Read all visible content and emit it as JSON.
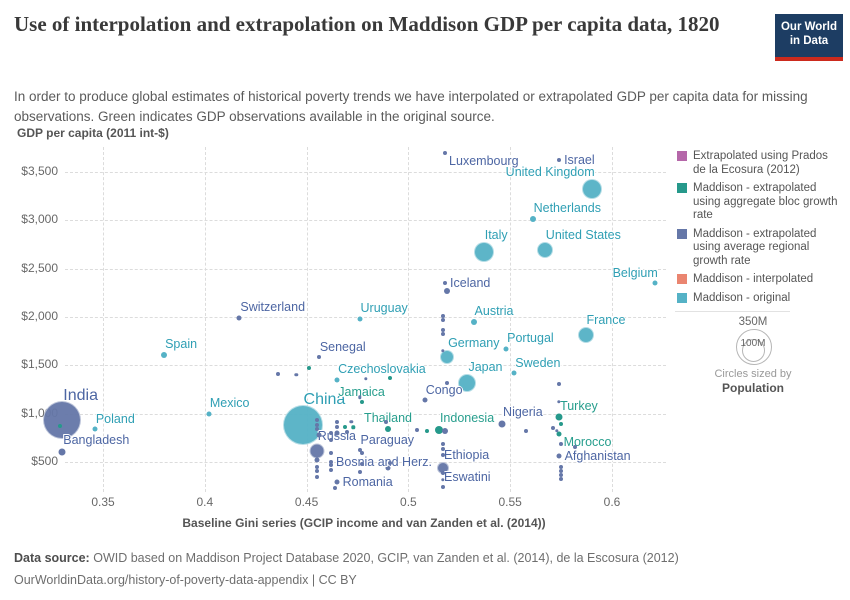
{
  "header": {
    "title": "Use of interpolation and extrapolation on Maddison GDP per capita data, 1820",
    "subtitle": "In order to produce global estimates of historical poverty trends we have interpolated or extrapolated GDP per capita data for missing observations. Green indicates GDP observations available in the original source.",
    "logo_line1": "Our World",
    "logo_line2": "in Data"
  },
  "colors": {
    "series": {
      "prados": "#b567a9",
      "bloc": "#26998b",
      "regional": "#6577a8",
      "interpolated": "#ea8570",
      "original": "#55b2c6"
    },
    "labels": {
      "original": "#2f9fb4",
      "bloc": "#279e8d",
      "regional": "#4d66a3"
    }
  },
  "legend": {
    "items": [
      {
        "label": "Extrapolated using Prados de la Ecosura (2012)",
        "series": "prados"
      },
      {
        "label": "Maddison - extrapolated using aggregate bloc growth rate",
        "series": "bloc"
      },
      {
        "label": "Maddison - extrapolated using average regional growth rate",
        "series": "regional"
      },
      {
        "label": "Maddison - interpolated",
        "series": "interpolated"
      },
      {
        "label": "Maddison - original",
        "series": "original"
      }
    ],
    "size_legend": {
      "big_label": "350M",
      "small_label": "100M",
      "caption1": "Circles sized by",
      "caption2": "Population"
    }
  },
  "chart_data": {
    "type": "scatter",
    "xlabel": "Baseline Gini series (GCIP income and van Zanden et al. (2014))",
    "ylabel": "GDP per capita (2011 int-$)",
    "x_ticks": [
      {
        "v": 0.35,
        "label": "0.35"
      },
      {
        "v": 0.4,
        "label": "0.4"
      },
      {
        "v": 0.45,
        "label": "0.45"
      },
      {
        "v": 0.5,
        "label": "0.5"
      },
      {
        "v": 0.55,
        "label": "0.55"
      },
      {
        "v": 0.6,
        "label": "0.6"
      }
    ],
    "y_ticks": [
      {
        "v": 500,
        "label": "$500"
      },
      {
        "v": 1000,
        "label": "$1,000"
      },
      {
        "v": 1500,
        "label": "$1,500"
      },
      {
        "v": 2000,
        "label": "$2,000"
      },
      {
        "v": 2500,
        "label": "$2,500"
      },
      {
        "v": 3000,
        "label": "$3,000"
      },
      {
        "v": 3500,
        "label": "$3,500"
      }
    ],
    "xlim": [
      0.331,
      0.625
    ],
    "ylim": [
      200,
      3750
    ],
    "grid": true,
    "circles_sized_by": "Population",
    "points": [
      {
        "label": "Luxembourg",
        "gini": 0.518,
        "gdp": 3700,
        "series": "regional",
        "r": 2,
        "pos": "below-right"
      },
      {
        "label": "Israel",
        "gini": 0.574,
        "gdp": 3620,
        "series": "regional",
        "r": 2,
        "pos": "right"
      },
      {
        "label": "United Kingdom",
        "gini": 0.59,
        "gdp": 3320,
        "series": "original",
        "r": 9,
        "pos": "above-left"
      },
      {
        "label": "Netherlands",
        "gini": 0.561,
        "gdp": 3010,
        "series": "original",
        "r": 3,
        "pos": "above-right"
      },
      {
        "label": "Italy",
        "gini": 0.537,
        "gdp": 2670,
        "series": "original",
        "r": 9,
        "pos": "above-right"
      },
      {
        "label": "United States",
        "gini": 0.567,
        "gdp": 2690,
        "series": "original",
        "r": 7,
        "pos": "above-right"
      },
      {
        "label": "Belgium",
        "gini": 0.621,
        "gdp": 2350,
        "series": "original",
        "r": 2.5,
        "pos": "above-left"
      },
      {
        "label": "Iceland",
        "gini": 0.518,
        "gdp": 2350,
        "series": "regional",
        "r": 2,
        "pos": "right"
      },
      {
        "label": "Switzerland",
        "gini": 0.417,
        "gdp": 1990,
        "series": "regional",
        "r": 2.5,
        "pos": "above-right"
      },
      {
        "label": "Uruguay",
        "gini": 0.476,
        "gdp": 1980,
        "series": "original",
        "r": 2.5,
        "pos": "above-right"
      },
      {
        "label": "Austria",
        "gini": 0.532,
        "gdp": 1950,
        "series": "original",
        "r": 3,
        "pos": "above-right"
      },
      {
        "label": "France",
        "gini": 0.587,
        "gdp": 1815,
        "series": "original",
        "r": 7,
        "pos": "above-right"
      },
      {
        "label": "Spain",
        "gini": 0.38,
        "gdp": 1610,
        "series": "original",
        "r": 3,
        "pos": "above-right"
      },
      {
        "label": "Senegal",
        "gini": 0.456,
        "gdp": 1590,
        "series": "regional",
        "r": 2,
        "pos": "above-right"
      },
      {
        "label": "Germany",
        "gini": 0.519,
        "gdp": 1590,
        "series": "original",
        "r": 6,
        "pos": "above-right"
      },
      {
        "label": "Portugal",
        "gini": 0.548,
        "gdp": 1670,
        "series": "original",
        "r": 2.5,
        "pos": "above-right"
      },
      {
        "label": "Sweden",
        "gini": 0.552,
        "gdp": 1420,
        "series": "original",
        "r": 2.5,
        "pos": "above-right"
      },
      {
        "label": "Czechoslovakia",
        "gini": 0.465,
        "gdp": 1350,
        "series": "original",
        "r": 2.5,
        "pos": "above-right"
      },
      {
        "label": "Japan",
        "gini": 0.529,
        "gdp": 1320,
        "series": "original",
        "r": 8,
        "pos": "above-right"
      },
      {
        "label": "Congo",
        "gini": 0.508,
        "gdp": 1140,
        "series": "regional",
        "r": 2.5,
        "pos": "above-right"
      },
      {
        "label": "Jamaica",
        "gini": 0.477,
        "gdp": 1120,
        "series": "bloc",
        "r": 2,
        "pos": "above"
      },
      {
        "label": "Mexico",
        "gini": 0.402,
        "gdp": 1000,
        "series": "original",
        "r": 2.5,
        "pos": "above-right"
      },
      {
        "label": "India",
        "gini": 0.33,
        "gdp": 935,
        "series": "regional",
        "r": 18,
        "pos": "above-right",
        "big": true
      },
      {
        "label": "China",
        "gini": 0.448,
        "gdp": 885,
        "series": "original",
        "r": 19,
        "pos": "above-right",
        "big": true
      },
      {
        "label": "Poland",
        "gini": 0.346,
        "gdp": 840,
        "series": "original",
        "r": 2.5,
        "pos": "above-right"
      },
      {
        "label": "Thailand",
        "gini": 0.49,
        "gdp": 840,
        "series": "bloc",
        "r": 3,
        "pos": "above"
      },
      {
        "label": "Indonesia",
        "gini": 0.515,
        "gdp": 830,
        "series": "bloc",
        "r": 4,
        "pos": "above-right"
      },
      {
        "label": "Nigeria",
        "gini": 0.546,
        "gdp": 895,
        "series": "regional",
        "r": 3.5,
        "pos": "above-right"
      },
      {
        "label": "Turkey",
        "gini": 0.574,
        "gdp": 965,
        "series": "bloc",
        "r": 3.5,
        "pos": "above-right"
      },
      {
        "label": "Russia",
        "gini": 0.455,
        "gdp": 615,
        "series": "regional",
        "r": 6.5,
        "pos": "above-right"
      },
      {
        "label": "Paraguay",
        "gini": 0.476,
        "gdp": 625,
        "series": "regional",
        "r": 2,
        "pos": "above-right"
      },
      {
        "label": "Morocco",
        "gini": 0.574,
        "gdp": 790,
        "series": "bloc",
        "r": 2.5,
        "pos": "below-right"
      },
      {
        "label": "Bosnia and Herz.",
        "gini": 0.462,
        "gdp": 500,
        "series": "regional",
        "r": 2,
        "pos": "right"
      },
      {
        "label": "Ethiopia",
        "gini": 0.517,
        "gdp": 440,
        "series": "regional",
        "r": 5,
        "pos": "above-right"
      },
      {
        "label": "Afghanistan",
        "gini": 0.574,
        "gdp": 560,
        "series": "regional",
        "r": 2.5,
        "pos": "right"
      },
      {
        "label": "Romania",
        "gini": 0.465,
        "gdp": 295,
        "series": "regional",
        "r": 2.5,
        "pos": "right"
      },
      {
        "label": "Eswatini",
        "gini": 0.517,
        "gdp": 240,
        "series": "regional",
        "r": 2,
        "pos": "above-right"
      },
      {
        "label": "Bangladesh",
        "gini": 0.33,
        "gdp": 605,
        "series": "regional",
        "r": 3.5,
        "pos": "above-right"
      },
      {
        "gini": 0.519,
        "gdp": 2270,
        "series": "regional",
        "r": 3
      },
      {
        "gini": 0.436,
        "gdp": 1410,
        "series": "regional",
        "r": 2
      },
      {
        "gini": 0.445,
        "gdp": 1400,
        "series": "regional",
        "r": 1.7
      },
      {
        "gini": 0.451,
        "gdp": 1470,
        "series": "bloc",
        "r": 2
      },
      {
        "gini": 0.517,
        "gdp": 2010,
        "series": "regional",
        "r": 2
      },
      {
        "gini": 0.517,
        "gdp": 1970,
        "series": "regional",
        "r": 2
      },
      {
        "gini": 0.517,
        "gdp": 1865,
        "series": "regional",
        "r": 2
      },
      {
        "gini": 0.517,
        "gdp": 1825,
        "series": "regional",
        "r": 2
      },
      {
        "gini": 0.517,
        "gdp": 1650,
        "series": "regional",
        "r": 1.7
      },
      {
        "gini": 0.519,
        "gdp": 1320,
        "series": "regional",
        "r": 2
      },
      {
        "gini": 0.574,
        "gdp": 1305,
        "series": "regional",
        "r": 2
      },
      {
        "gini": 0.574,
        "gdp": 1120,
        "series": "regional",
        "r": 1.7
      },
      {
        "gini": 0.575,
        "gdp": 895,
        "series": "bloc",
        "r": 2
      },
      {
        "gini": 0.571,
        "gdp": 850,
        "series": "regional",
        "r": 2
      },
      {
        "gini": 0.573,
        "gdp": 820,
        "series": "regional",
        "r": 1.7
      },
      {
        "gini": 0.575,
        "gdp": 685,
        "series": "regional",
        "r": 2
      },
      {
        "gini": 0.582,
        "gdp": 655,
        "series": "regional",
        "r": 2
      },
      {
        "gini": 0.575,
        "gdp": 450,
        "series": "regional",
        "r": 2
      },
      {
        "gini": 0.575,
        "gdp": 405,
        "series": "regional",
        "r": 2
      },
      {
        "gini": 0.575,
        "gdp": 365,
        "series": "regional",
        "r": 2
      },
      {
        "gini": 0.575,
        "gdp": 325,
        "series": "regional",
        "r": 2
      },
      {
        "gini": 0.558,
        "gdp": 820,
        "series": "regional",
        "r": 2
      },
      {
        "gini": 0.518,
        "gdp": 820,
        "series": "regional",
        "r": 3
      },
      {
        "gini": 0.509,
        "gdp": 820,
        "series": "bloc",
        "r": 2
      },
      {
        "gini": 0.517,
        "gdp": 685,
        "series": "regional",
        "r": 2
      },
      {
        "gini": 0.517,
        "gdp": 635,
        "series": "regional",
        "r": 2
      },
      {
        "gini": 0.517,
        "gdp": 570,
        "series": "regional",
        "r": 2
      },
      {
        "gini": 0.517,
        "gdp": 385,
        "series": "regional",
        "r": 2
      },
      {
        "gini": 0.517,
        "gdp": 315,
        "series": "regional",
        "r": 1.7
      },
      {
        "gini": 0.455,
        "gdp": 935,
        "series": "regional",
        "r": 2
      },
      {
        "gini": 0.455,
        "gdp": 885,
        "series": "regional",
        "r": 2
      },
      {
        "gini": 0.455,
        "gdp": 840,
        "series": "regional",
        "r": 2
      },
      {
        "gini": 0.456,
        "gdp": 780,
        "series": "regional",
        "r": 2.5
      },
      {
        "gini": 0.455,
        "gdp": 520,
        "series": "regional",
        "r": 2.5
      },
      {
        "gini": 0.455,
        "gdp": 450,
        "series": "regional",
        "r": 2
      },
      {
        "gini": 0.455,
        "gdp": 405,
        "series": "regional",
        "r": 2
      },
      {
        "gini": 0.455,
        "gdp": 345,
        "series": "regional",
        "r": 2
      },
      {
        "gini": 0.462,
        "gdp": 800,
        "series": "regional",
        "r": 2
      },
      {
        "gini": 0.462,
        "gdp": 730,
        "series": "regional",
        "r": 2
      },
      {
        "gini": 0.462,
        "gdp": 595,
        "series": "regional",
        "r": 2
      },
      {
        "gini": 0.462,
        "gdp": 470,
        "series": "regional",
        "r": 2
      },
      {
        "gini": 0.462,
        "gdp": 420,
        "series": "regional",
        "r": 2
      },
      {
        "gini": 0.465,
        "gdp": 915,
        "series": "regional",
        "r": 2
      },
      {
        "gini": 0.465,
        "gdp": 860,
        "series": "regional",
        "r": 2
      },
      {
        "gini": 0.465,
        "gdp": 800,
        "series": "regional",
        "r": 2.5
      },
      {
        "gini": 0.472,
        "gdp": 915,
        "series": "regional",
        "r": 1.7
      },
      {
        "gini": 0.473,
        "gdp": 860,
        "series": "bloc",
        "r": 1.7
      },
      {
        "gini": 0.476,
        "gdp": 1170,
        "series": "regional",
        "r": 1.7
      },
      {
        "gini": 0.479,
        "gdp": 1360,
        "series": "regional",
        "r": 1.7
      },
      {
        "gini": 0.491,
        "gdp": 1370,
        "series": "bloc",
        "r": 2
      },
      {
        "gini": 0.489,
        "gdp": 915,
        "series": "regional",
        "r": 2
      },
      {
        "gini": 0.504,
        "gdp": 830,
        "series": "regional",
        "r": 2
      },
      {
        "gini": 0.47,
        "gdp": 810,
        "series": "regional",
        "r": 2
      },
      {
        "gini": 0.469,
        "gdp": 860,
        "series": "bloc",
        "r": 2
      },
      {
        "gini": 0.477,
        "gdp": 595,
        "series": "regional",
        "r": 2
      },
      {
        "gini": 0.476,
        "gdp": 395,
        "series": "regional",
        "r": 2
      },
      {
        "gini": 0.477,
        "gdp": 480,
        "series": "regional",
        "r": 2
      },
      {
        "gini": 0.49,
        "gdp": 440,
        "series": "regional",
        "r": 2.5
      },
      {
        "gini": 0.491,
        "gdp": 490,
        "series": "regional",
        "r": 2
      },
      {
        "gini": 0.464,
        "gdp": 230,
        "series": "regional",
        "r": 2
      },
      {
        "gini": 0.329,
        "gdp": 875,
        "series": "bloc",
        "r": 2
      }
    ]
  },
  "footer": {
    "source_label": "Data source:",
    "source_text": "OWID based on Maddison Project Database 2020, GCIP, van Zanden et al. (2014), de la Escosura (2012)",
    "url": "OurWorldinData.org/history-of-poverty-data-appendix",
    "separator": " | ",
    "license": "CC BY"
  }
}
